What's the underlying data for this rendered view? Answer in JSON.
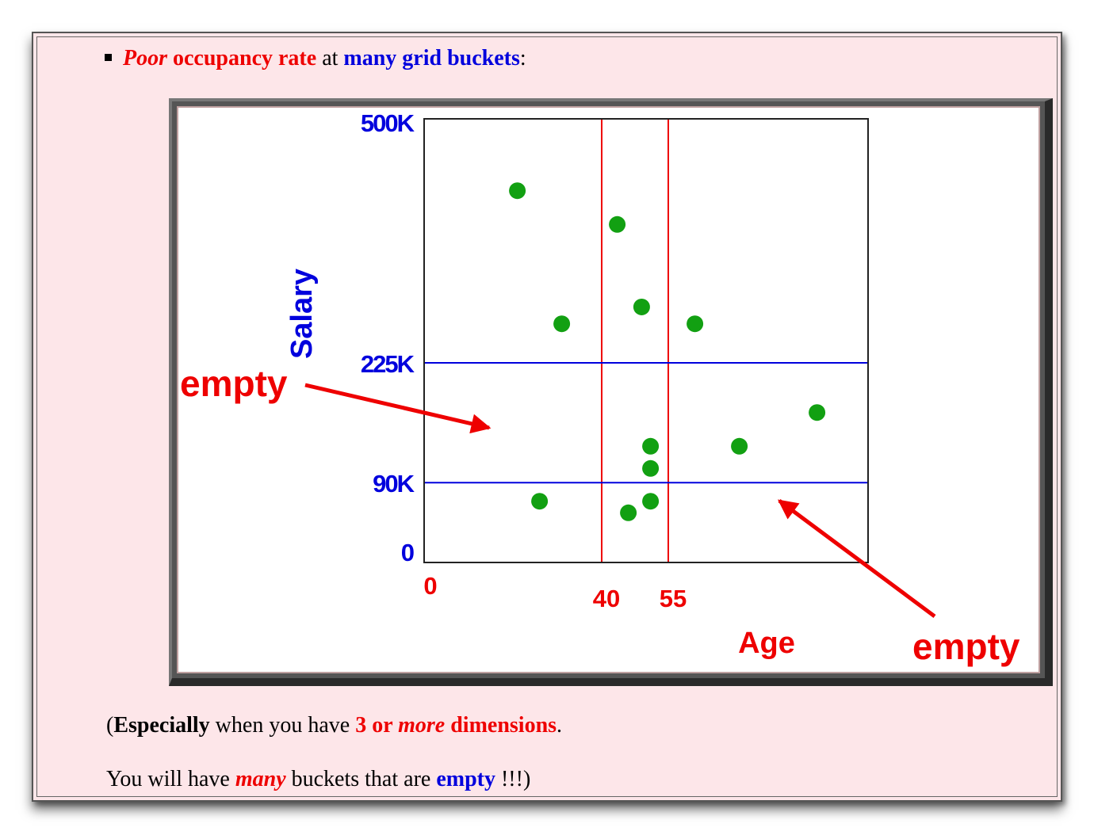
{
  "bullet": {
    "poor": "Poor",
    "occupancy_rate": "occupancy rate",
    "at": "at",
    "many_grid_buckets": "many grid buckets",
    "colon": ":"
  },
  "figure": {
    "y_axis_label": "Salary",
    "x_axis_label": "Age",
    "y_ticks": [
      {
        "label": "500K",
        "value": 500
      },
      {
        "label": "225K",
        "value": 225
      },
      {
        "label": "90K",
        "value": 90
      },
      {
        "label": "0",
        "value": 0
      }
    ],
    "x_ticks": [
      {
        "label": "0",
        "value": 0
      },
      {
        "label": "40",
        "value": 40
      },
      {
        "label": "55",
        "value": 55
      }
    ],
    "x_range": [
      0,
      100
    ],
    "y_range": [
      0,
      500
    ],
    "points": [
      {
        "age": 21,
        "salary": 419
      },
      {
        "age": 43.5,
        "salary": 381
      },
      {
        "age": 31,
        "salary": 269
      },
      {
        "age": 49,
        "salary": 288
      },
      {
        "age": 61,
        "salary": 269
      },
      {
        "age": 88.5,
        "salary": 169
      },
      {
        "age": 51,
        "salary": 131
      },
      {
        "age": 71,
        "salary": 131
      },
      {
        "age": 51,
        "salary": 106
      },
      {
        "age": 26,
        "salary": 69
      },
      {
        "age": 51,
        "salary": 69
      },
      {
        "age": 46,
        "salary": 56
      }
    ],
    "annotations": [
      {
        "text": "empty"
      },
      {
        "text": "empty"
      }
    ],
    "colors": {
      "points": "#12a012",
      "age_lines": "#ee0000",
      "salary_lines": "#0000dd",
      "annotation": "#ee0000",
      "y_labels": "#0000dd",
      "x_labels": "#ee0000"
    }
  },
  "note1": {
    "open": "(",
    "especially": "Especially",
    "when_you_have": " when you have ",
    "three_or": "3 or ",
    "more": "more",
    "dimensions": " dimensions",
    "period": "."
  },
  "note2": {
    "you_will_have": "You will have ",
    "many": "many",
    "buckets_that_are": " buckets that are ",
    "empty": "empty",
    "end": " !!!)"
  }
}
